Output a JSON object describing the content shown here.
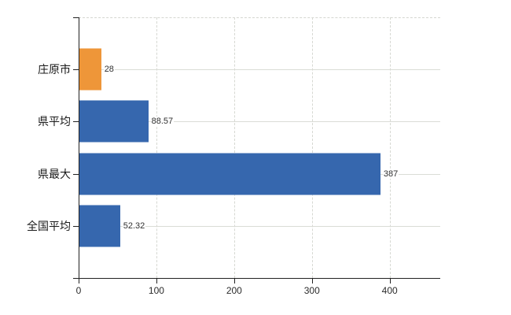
{
  "chart_data": {
    "type": "bar",
    "orientation": "horizontal",
    "title": "",
    "categories": [
      "庄原市",
      "県平均",
      "県最大",
      "全国平均"
    ],
    "values": [
      28,
      88.57,
      387,
      52.32
    ],
    "data_labels": [
      "28",
      "88.57",
      "387",
      "52.32"
    ],
    "bar_colors": [
      "#EE9639",
      "#3667AE",
      "#3667AE",
      "#3667AE"
    ],
    "x_tick_values": [
      0,
      100,
      200,
      300,
      400
    ],
    "x_tick_labels": [
      "0",
      "100",
      "200",
      "300",
      "400"
    ],
    "xlim": [
      0,
      465
    ],
    "xlabel": "",
    "ylabel": "",
    "legend": "none",
    "grid": {
      "vertical": "dashed at x ticks",
      "horizontal": "solid through category centers",
      "top_border": "dashed"
    },
    "colors": {
      "highlight_bar": "#EE9639",
      "default_bar": "#3667AE",
      "grid": "#D6D8D2",
      "axis": "#212121",
      "tick_text": "#2B2B2B",
      "value_text": "#303030",
      "background": "#FFFFFF"
    }
  }
}
